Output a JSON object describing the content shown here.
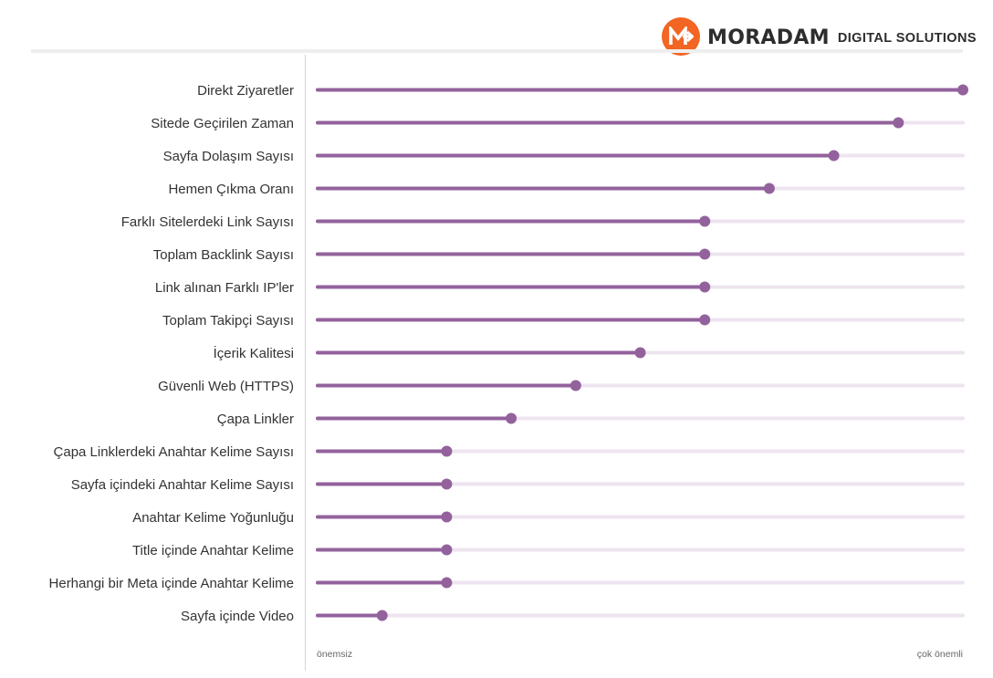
{
  "brand": {
    "name": "MORADAM",
    "tagline": "DIGITAL SOLUTIONS",
    "accent_color": "#f26522",
    "logo_icon": "moradam-m-arrow-icon"
  },
  "chart_data": {
    "type": "lollipop",
    "title": "",
    "xlabel": "",
    "ylabel": "",
    "xlim": [
      0,
      100
    ],
    "scale_labels": {
      "min": "önemsiz",
      "max": "çok önemli"
    },
    "x_tick_values": [
      0,
      100
    ],
    "grid": false,
    "legend": "none",
    "colors": {
      "bar": "#93629c",
      "point": "#93629c",
      "track": "#ede4ef",
      "axis": "#d6d6d6",
      "label": "#333333",
      "scale_label": "#666666"
    },
    "categories": [
      "Direkt Ziyaretler",
      "Sitede Geçirilen Zaman",
      "Sayfa Dolaşım Sayısı",
      "Hemen Çıkma Oranı",
      "Farklı Sitelerdeki Link Sayısı",
      "Toplam Backlink Sayısı",
      "Link alınan Farklı IP'ler",
      "Toplam Takipçi Sayısı",
      "İçerik Kalitesi",
      "Güvenli Web (HTTPS)",
      "Çapa Linkler",
      "Çapa Linklerdeki Anahtar Kelime Sayısı",
      "Sayfa içindeki Anahtar Kelime Sayısı",
      "Anahtar Kelime Yoğunluğu",
      "Title içinde Anahtar Kelime",
      "Herhangi bir Meta içinde Anahtar Kelime",
      "Sayfa içinde Video"
    ],
    "values": [
      100,
      90,
      80,
      70,
      60,
      60,
      60,
      60,
      50,
      40,
      30,
      20,
      20,
      20,
      20,
      20,
      10
    ]
  }
}
